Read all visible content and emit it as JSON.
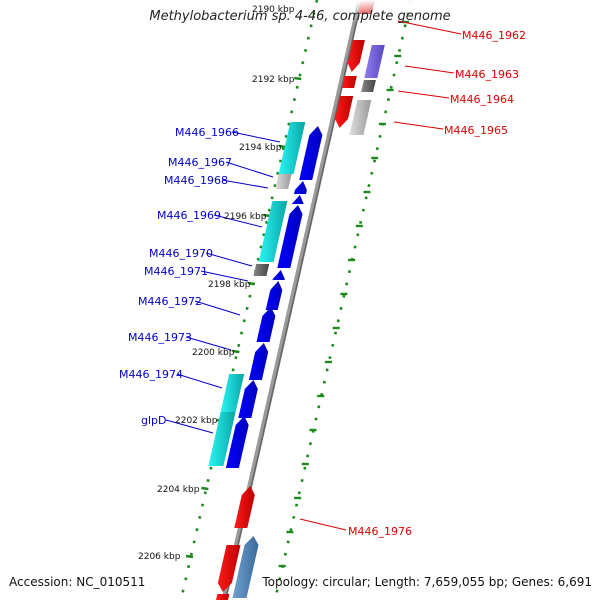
{
  "title": "Methylobacterium sp. 4-46, complete genome",
  "accession": "Accession: NC_010511",
  "topology": "Topology: circular; Length: 7,659,055 bp; Genes: 6,691",
  "colors": {
    "forward_gene": "#0000ee",
    "reverse_gene": "#ee0000",
    "forward_label": "#0000cc",
    "reverse_label": "#dd0000",
    "backbone": "#888888",
    "tick": "#1a8a1a",
    "cyan_feature": "#19d0d0",
    "purple_feature": "#7766dd",
    "steelblue_feature": "#5588bb",
    "gray_feature": "#666666",
    "lightgray_feature": "#bbbbbb"
  },
  "kbp_ticks": [
    "2190 kbp",
    "2192 kbp",
    "2194 kbp",
    "2196 kbp",
    "2198 kbp",
    "2200 kbp",
    "2202 kbp",
    "2204 kbp",
    "2206 kbp"
  ],
  "forward_labels": [
    "M446_1966",
    "M446_1967",
    "M446_1968",
    "M446_1969",
    "M446_1970",
    "M446_1971",
    "M446_1972",
    "M446_1973",
    "M446_1974",
    "glpD"
  ],
  "reverse_labels": [
    "M446_1962",
    "M446_1963",
    "M446_1964",
    "M446_1965",
    "M446_1976"
  ]
}
